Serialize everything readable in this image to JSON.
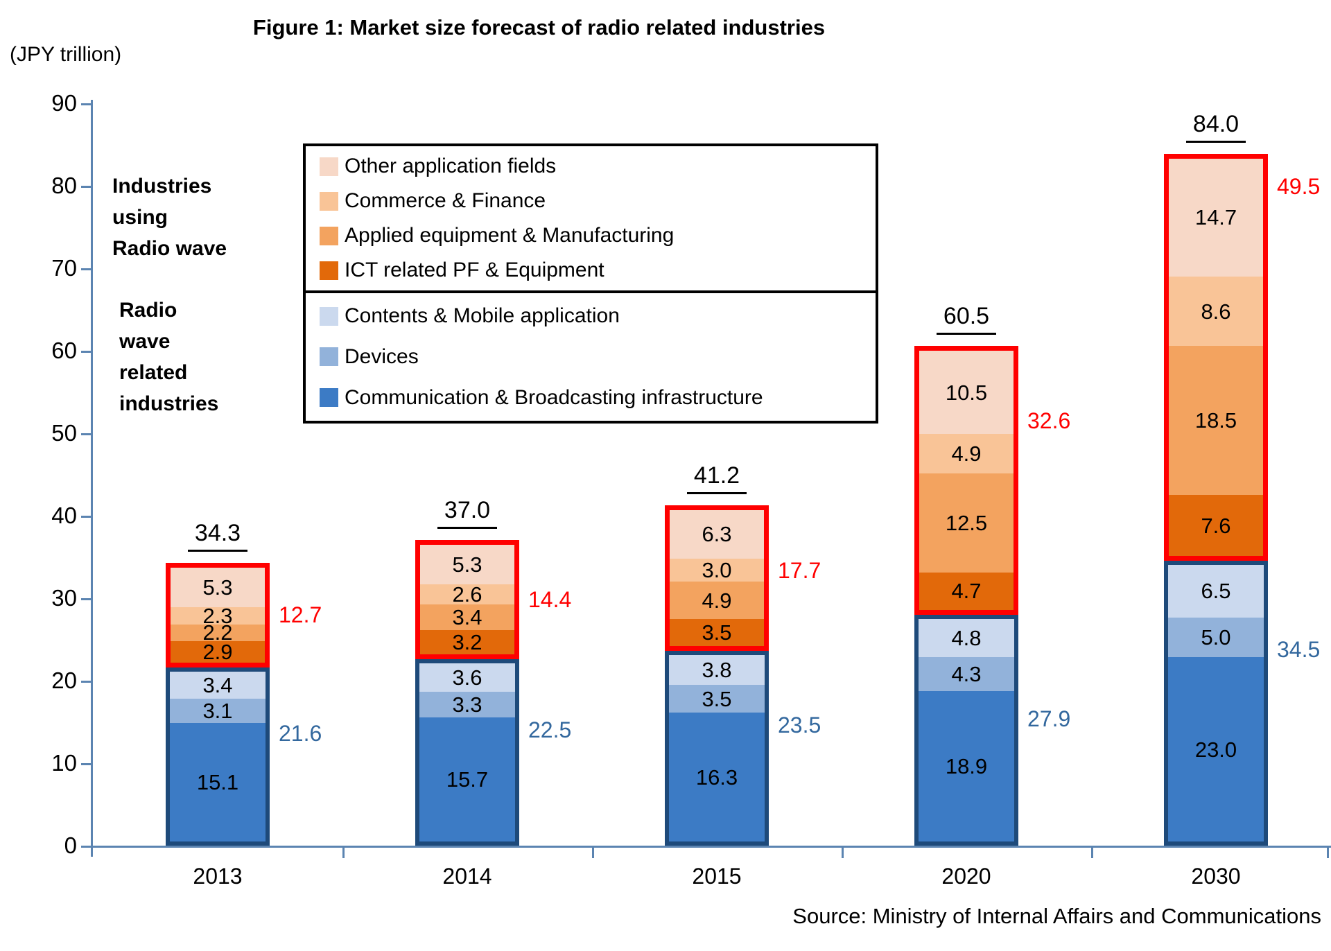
{
  "title": "Figure 1: Market size forecast of radio related industries",
  "unit_label": "(JPY trillion)",
  "source": "Source: Ministry of Internal Affairs and Communications",
  "annotations": {
    "upper": "Industries\nusing\nRadio wave",
    "lower": "Radio\nwave\nrelated\nindustries"
  },
  "chart_data": {
    "type": "bar",
    "subtype": "stacked",
    "grid": false,
    "legend_position": "upper-middle-boxed",
    "categories": [
      "2013",
      "2014",
      "2015",
      "2020",
      "2030"
    ],
    "series": [
      {
        "name": "Communication & Broadcasting infrastructure",
        "color": "#3c7bc5",
        "group": "radio_wave_related",
        "values": [
          15.1,
          15.7,
          16.3,
          18.9,
          23.0
        ]
      },
      {
        "name": "Devices",
        "color": "#92b2da",
        "group": "radio_wave_related",
        "values": [
          3.1,
          3.3,
          3.5,
          4.3,
          5.0
        ]
      },
      {
        "name": "Contents & Mobile application",
        "color": "#cbd9ee",
        "group": "radio_wave_related",
        "values": [
          3.4,
          3.6,
          3.8,
          4.8,
          6.5
        ]
      },
      {
        "name": "ICT related PF & Equipment",
        "color": "#e2690a",
        "group": "industries_using_radio_wave",
        "values": [
          2.9,
          3.2,
          3.5,
          4.7,
          7.6
        ]
      },
      {
        "name": "Applied equipment & Manufacturing",
        "color": "#f3a35f",
        "group": "industries_using_radio_wave",
        "values": [
          2.2,
          3.4,
          4.9,
          12.5,
          18.5
        ]
      },
      {
        "name": "Commerce & Finance",
        "color": "#f9c497",
        "group": "industries_using_radio_wave",
        "values": [
          2.3,
          2.6,
          3.0,
          4.9,
          8.6
        ]
      },
      {
        "name": "Other application fields",
        "color": "#f7d8c7",
        "group": "industries_using_radio_wave",
        "values": [
          5.3,
          5.3,
          6.3,
          10.5,
          14.7
        ]
      }
    ],
    "group_totals": {
      "industries_using_radio_wave": {
        "label": "Industries using Radio wave",
        "values": [
          12.7,
          14.4,
          17.7,
          32.6,
          49.5
        ],
        "label_color": "#ff0000",
        "border_color": "#ff0000"
      },
      "radio_wave_related": {
        "label": "Radio wave related industries",
        "values": [
          21.6,
          22.5,
          23.5,
          27.9,
          34.5
        ],
        "label_color": "#33689e",
        "border_color": "#1e4a7a"
      }
    },
    "totals": [
      34.3,
      37.0,
      41.2,
      60.5,
      84.0
    ],
    "ylim": [
      0,
      90
    ],
    "ytick_step": 10,
    "axis_color": "#5b84b1",
    "legend": {
      "upper": [
        "Other application fields",
        "Commerce & Finance",
        "Applied equipment & Manufacturing",
        "ICT related PF & Equipment"
      ],
      "lower": [
        "Contents & Mobile application",
        "Devices",
        "Communication & Broadcasting infrastructure"
      ]
    }
  }
}
